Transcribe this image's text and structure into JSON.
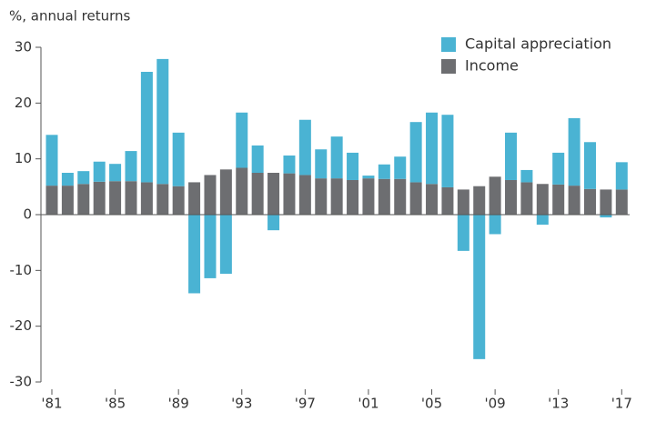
{
  "chart_data": {
    "type": "bar",
    "stacked": true,
    "y_label": "%, annual returns",
    "categories": [
      "'81",
      null,
      null,
      null,
      "'85",
      null,
      null,
      null,
      "'89",
      null,
      null,
      null,
      "'93",
      null,
      null,
      null,
      "'97",
      null,
      null,
      null,
      "'01",
      null,
      null,
      null,
      "'05",
      null,
      null,
      null,
      "'09",
      null,
      null,
      null,
      "'13",
      null,
      null,
      null,
      "'17"
    ],
    "series": [
      {
        "name": "Income",
        "color": "#6d6e71",
        "values": [
          5.2,
          5.2,
          5.5,
          5.9,
          6.0,
          6.0,
          5.8,
          5.5,
          5.1,
          5.8,
          7.1,
          8.1,
          8.4,
          7.5,
          7.5,
          7.4,
          7.1,
          6.5,
          6.5,
          6.2,
          6.5,
          6.4,
          6.4,
          5.8,
          5.5,
          4.9,
          4.5,
          5.1,
          6.8,
          6.2,
          5.8,
          5.5,
          5.4,
          5.2,
          4.6,
          4.5,
          4.5
        ]
      },
      {
        "name": "Capital appreciation",
        "color": "#4ab3d3",
        "values": [
          9.1,
          2.3,
          2.3,
          3.6,
          3.1,
          5.4,
          19.8,
          22.4,
          9.6,
          -14.1,
          -11.4,
          -10.6,
          9.9,
          4.9,
          -2.8,
          3.2,
          9.9,
          5.2,
          7.5,
          4.9,
          0.5,
          2.6,
          4.0,
          10.8,
          12.8,
          13.0,
          -6.5,
          -25.9,
          -3.5,
          8.5,
          2.2,
          -1.8,
          5.7,
          12.1,
          8.4,
          -0.5,
          4.9
        ]
      }
    ],
    "ylim": [
      -30,
      30
    ],
    "yticks": [
      -30,
      -20,
      -10,
      0,
      10,
      20,
      30
    ]
  }
}
